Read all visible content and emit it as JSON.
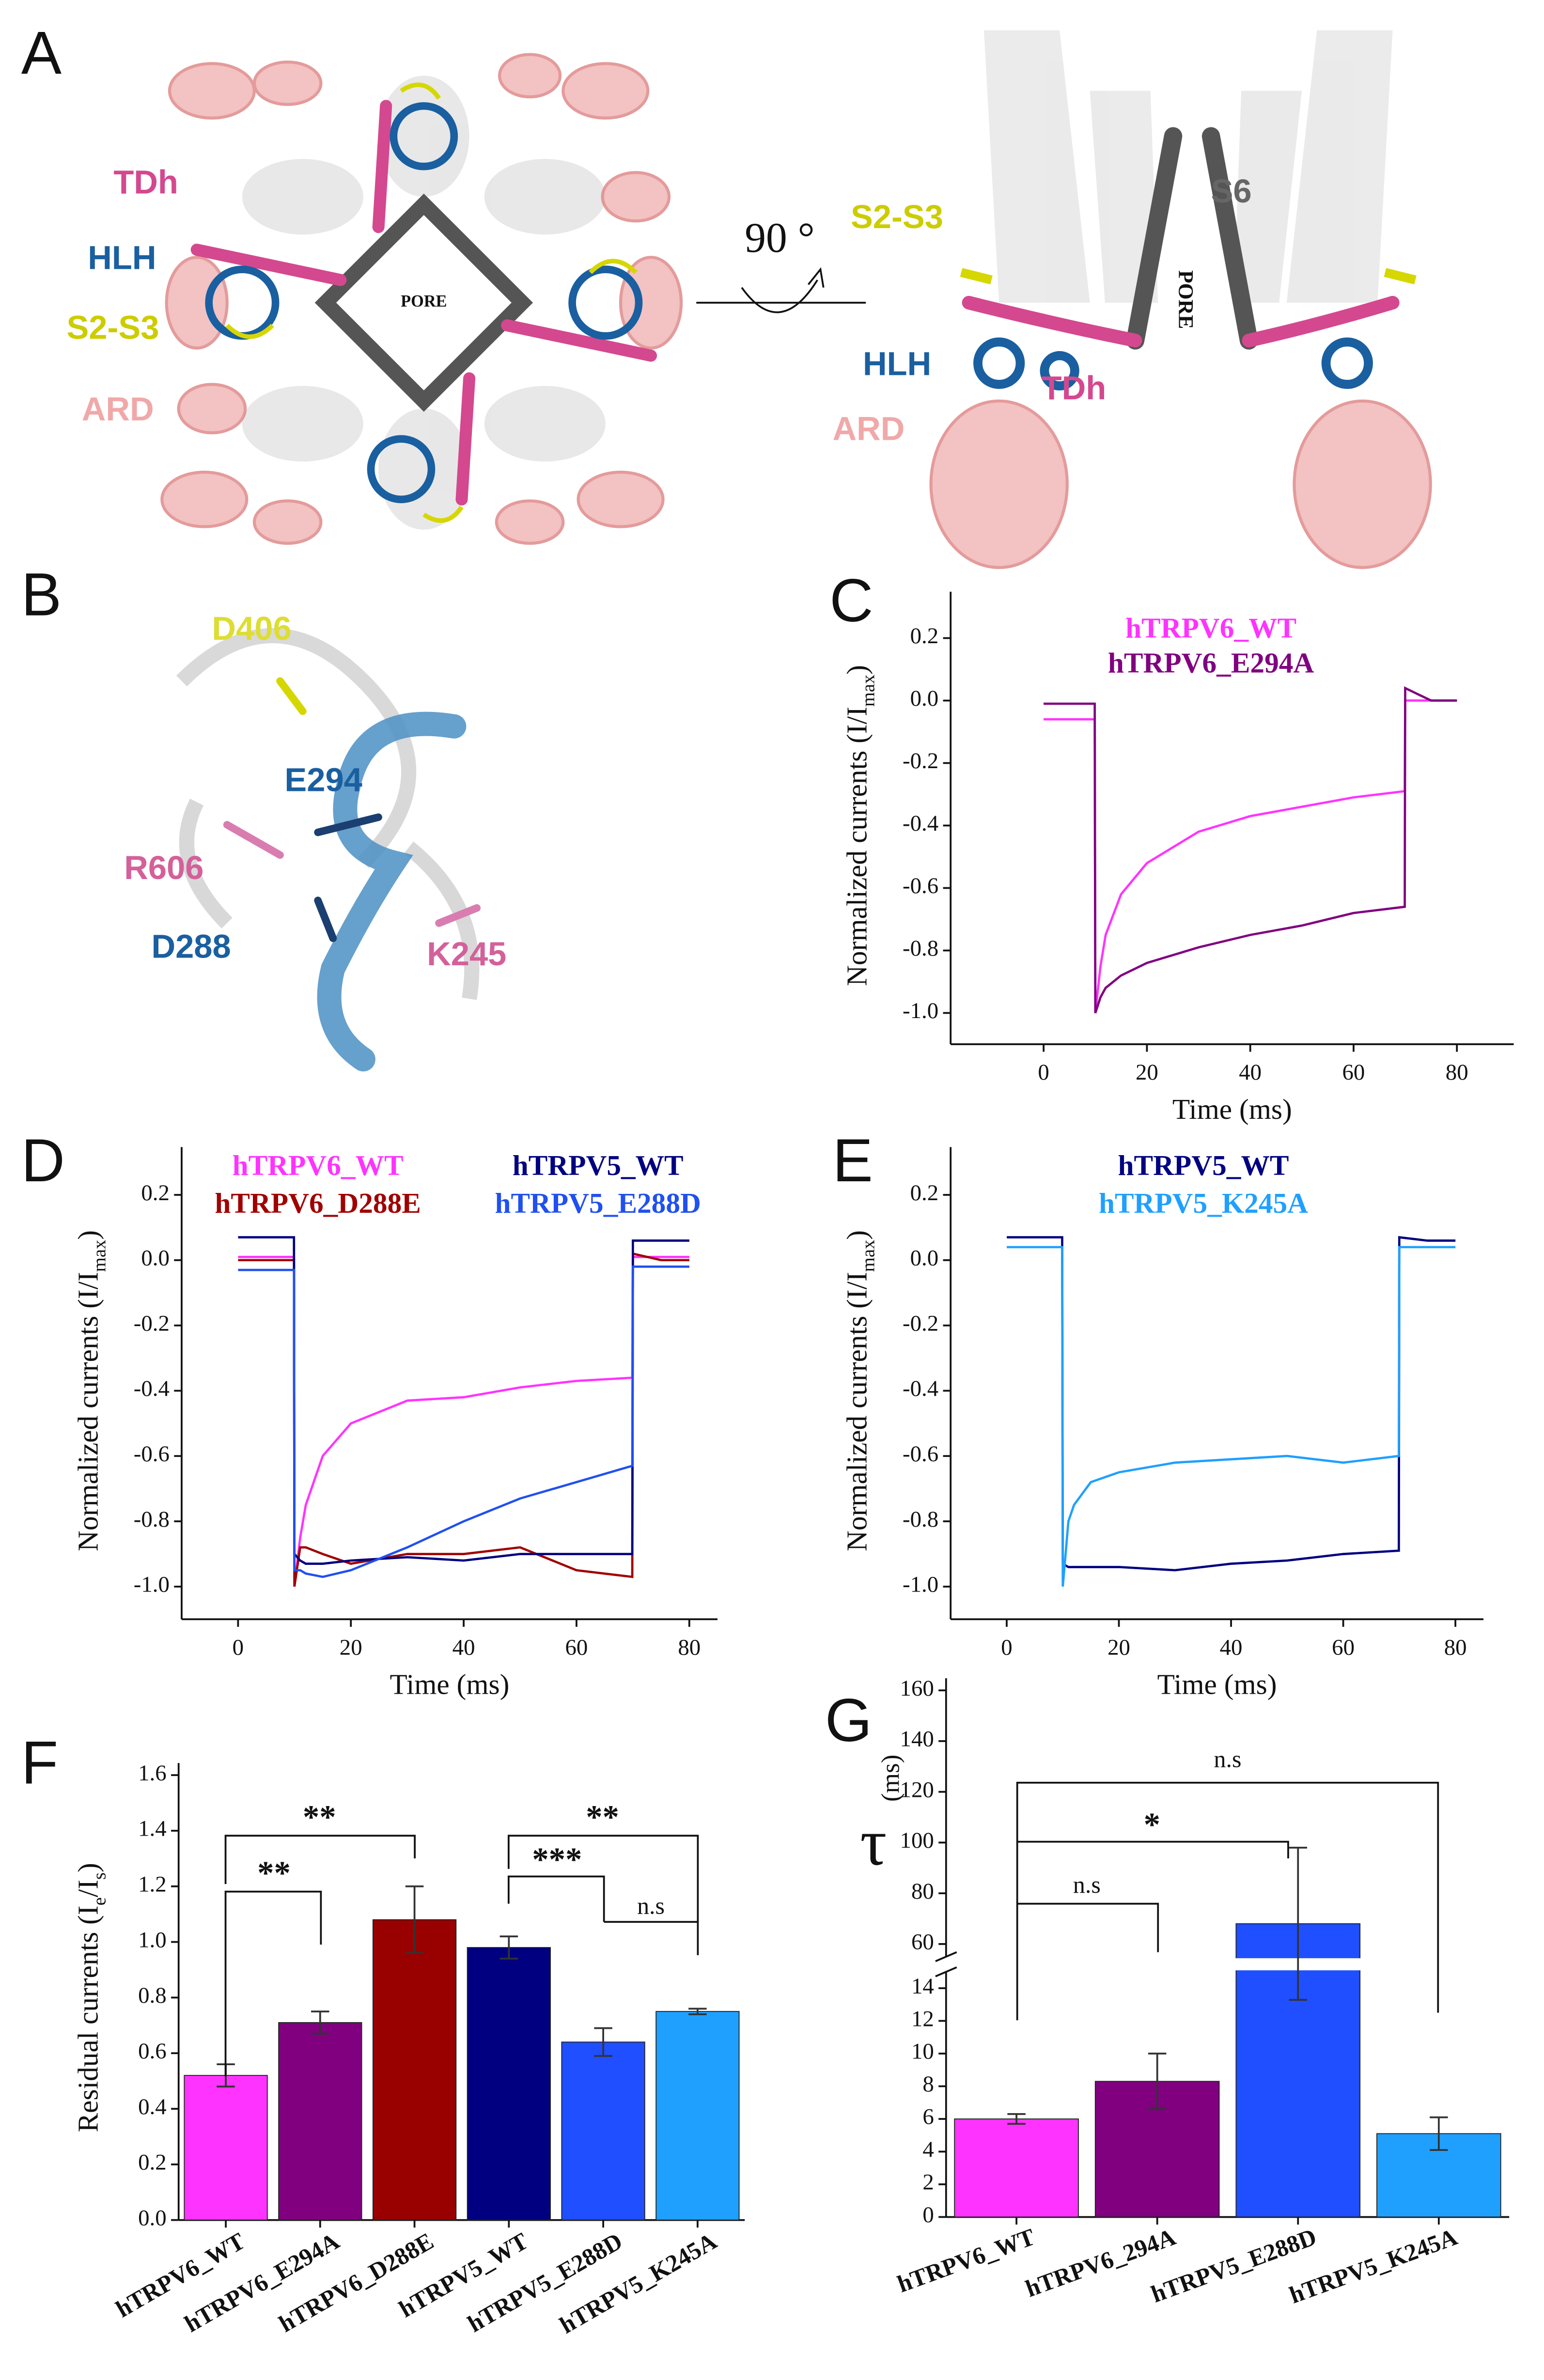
{
  "structure": {
    "panel_labels": [
      "A",
      "B"
    ],
    "A_left": [
      "TDh",
      "HLH",
      "S2-S3",
      "ARD",
      "PORE"
    ],
    "A_right": [
      "S2-S3",
      "S6",
      "PORE",
      "HLH",
      "TDh",
      "ARD"
    ],
    "rotation": "90 °",
    "B": [
      "D406",
      "E294",
      "R606",
      "D288",
      "K245"
    ]
  },
  "chart_data": [
    {
      "type": "line",
      "panel_label": "C",
      "x": [
        0,
        5,
        9.9,
        10,
        11,
        12,
        15,
        20,
        30,
        40,
        50,
        60,
        69.9,
        70,
        75,
        80
      ],
      "xlim": [
        -18,
        91
      ],
      "xticks": [
        0,
        20,
        40,
        60,
        80
      ],
      "ylim": [
        -1.1,
        0.3
      ],
      "yticks": [
        {
          "value": -1,
          "label": "-1.0"
        },
        -0.8,
        -0.6,
        -0.4,
        -0.2,
        {
          "value": 0,
          "label": "0.0"
        },
        0.2
      ],
      "xlabel": "Time (ms)",
      "ylabel_parts": [
        {
          "text": "Normalized currents (I/I"
        },
        {
          "text": "max",
          "sub": true
        },
        {
          "text": ")"
        }
      ],
      "series": [
        {
          "name": "hTRPV6_WT",
          "color": "#ff33ff",
          "values": [
            -0.06,
            -0.06,
            -0.06,
            -1.0,
            -0.85,
            -0.75,
            -0.62,
            -0.52,
            -0.42,
            -0.37,
            -0.34,
            -0.31,
            -0.29,
            0.0,
            0.0,
            0.0
          ]
        },
        {
          "name": "hTRPV6_E294A",
          "color": "#800080",
          "values": [
            -0.01,
            -0.01,
            -0.01,
            -1.0,
            -0.95,
            -0.92,
            -0.88,
            -0.84,
            -0.79,
            -0.75,
            -0.72,
            -0.68,
            -0.66,
            0.04,
            0.0,
            0.0
          ]
        }
      ]
    },
    {
      "type": "line",
      "panel_label": "D",
      "x": [
        0,
        5,
        9.9,
        10,
        11,
        12,
        15,
        20,
        30,
        40,
        50,
        60,
        69.9,
        70,
        75,
        80
      ],
      "xlim": [
        -10,
        85
      ],
      "xticks": [
        0,
        20,
        40,
        60,
        80
      ],
      "ylim": [
        -1.1,
        0.3
      ],
      "yticks": [
        {
          "value": -1,
          "label": "-1.0"
        },
        -0.8,
        -0.6,
        -0.4,
        -0.2,
        {
          "value": 0,
          "label": "0.0"
        },
        0.2
      ],
      "xlabel": "Time (ms)",
      "ylabel_parts": [
        {
          "text": "Normalized currents (I/I"
        },
        {
          "text": "max",
          "sub": true
        },
        {
          "text": ")"
        }
      ],
      "series": [
        {
          "name": "hTRPV6_WT",
          "color": "#ff33ff",
          "values": [
            0.01,
            0.01,
            0.01,
            -1.0,
            -0.85,
            -0.75,
            -0.6,
            -0.5,
            -0.43,
            -0.42,
            -0.39,
            -0.37,
            -0.36,
            0.01,
            0.01,
            0.01
          ]
        },
        {
          "name": "hTRPV6_D288E",
          "color": "#a00000",
          "values": [
            0.0,
            0.0,
            0.0,
            -1.0,
            -0.88,
            -0.88,
            -0.9,
            -0.93,
            -0.9,
            -0.9,
            -0.88,
            -0.95,
            -0.97,
            0.02,
            0.0,
            0.0
          ]
        },
        {
          "name": "hTRPV5_WT",
          "color": "#000080",
          "values": [
            0.07,
            0.07,
            0.07,
            -0.9,
            -0.92,
            -0.93,
            -0.93,
            -0.92,
            -0.91,
            -0.92,
            -0.9,
            -0.9,
            -0.9,
            0.06,
            0.06,
            0.06
          ]
        },
        {
          "name": "hTRPV5_E288D",
          "color": "#2050f0",
          "values": [
            -0.03,
            -0.03,
            -0.03,
            -0.95,
            -0.95,
            -0.96,
            -0.97,
            -0.95,
            -0.88,
            -0.8,
            -0.73,
            -0.68,
            -0.63,
            -0.02,
            -0.02,
            -0.02
          ]
        }
      ]
    },
    {
      "type": "line",
      "panel_label": "E",
      "x": [
        0,
        5,
        9.9,
        10,
        11,
        12,
        15,
        20,
        30,
        40,
        50,
        60,
        69.9,
        70,
        75,
        80
      ],
      "xlim": [
        -10,
        85
      ],
      "xticks": [
        0,
        20,
        40,
        60,
        80
      ],
      "ylim": [
        -1.1,
        0.3
      ],
      "yticks": [
        {
          "value": -1,
          "label": "-1.0"
        },
        -0.8,
        -0.6,
        -0.4,
        -0.2,
        {
          "value": 0,
          "label": "0.0"
        },
        0.2
      ],
      "xlabel": "Time (ms)",
      "ylabel_parts": [
        {
          "text": "Normalized currents (I/I"
        },
        {
          "text": "max",
          "sub": true
        },
        {
          "text": ")"
        }
      ],
      "series": [
        {
          "name": "hTRPV5_WT",
          "color": "#000080",
          "values": [
            0.07,
            0.07,
            0.07,
            -0.93,
            -0.94,
            -0.94,
            -0.94,
            -0.94,
            -0.95,
            -0.93,
            -0.92,
            -0.9,
            -0.89,
            0.07,
            0.06,
            0.06
          ]
        },
        {
          "name": "hTRPV5_K245A",
          "color": "#1fa0ff",
          "values": [
            0.04,
            0.04,
            0.04,
            -1.0,
            -0.8,
            -0.75,
            -0.68,
            -0.65,
            -0.62,
            -0.61,
            -0.6,
            -0.62,
            -0.6,
            0.04,
            0.04,
            0.04
          ]
        }
      ]
    },
    {
      "type": "bar",
      "panel_label": "F",
      "categories": [
        "hTRPV6_WT",
        "hTRPV6_E294A",
        "hTRPV6_D288E",
        "hTRPV5_WT",
        "hTRPV5_E288D",
        "hTRPV5_K245A"
      ],
      "values": [
        0.52,
        0.71,
        1.08,
        0.98,
        0.64,
        0.75
      ],
      "errors": [
        0.04,
        0.04,
        0.12,
        0.04,
        0.05,
        0.01
      ],
      "colors": [
        "#ff33ff",
        "#800080",
        "#990000",
        "#000080",
        "#1f4fff",
        "#1fa0ff"
      ],
      "ylim": [
        0,
        1.6
      ],
      "yticks": [
        {
          "value": 0,
          "label": "0.0"
        },
        0.2,
        0.4,
        0.6,
        0.8,
        {
          "value": 1,
          "label": "1.0"
        },
        1.2,
        1.4,
        1.6
      ],
      "ylabel_parts": [
        {
          "text": "Residual currents (I"
        },
        {
          "text": "e",
          "sub": true
        },
        {
          "text": "/I"
        },
        {
          "text": "s",
          "sub": true
        },
        {
          "text": ")"
        }
      ],
      "annotations": [
        "**",
        "**",
        "***",
        "**",
        "n.s"
      ]
    },
    {
      "type": "bar",
      "panel_label": "G",
      "categories": [
        "hTRPV6_WT",
        "hTRPV6_294A",
        "hTRPV5_E288D",
        "hTRPV5_K245A"
      ],
      "values": [
        6.0,
        8.3,
        68,
        5.1
      ],
      "errors": [
        0.3,
        1.7,
        30,
        1.0
      ],
      "colors": [
        "#ff33ff",
        "#800080",
        "#1f4fff",
        "#1fa0ff"
      ],
      "ylim": [
        0,
        160
      ],
      "axis_break": [
        15,
        55
      ],
      "yticks": [
        0,
        2,
        4,
        6,
        8,
        10,
        12,
        14,
        60,
        80,
        100,
        120,
        140,
        160
      ],
      "ylabel_symbol": "τ",
      "ylabel_unit": "(ms)",
      "annotations": [
        "n.s",
        "*",
        "n.s"
      ]
    }
  ]
}
